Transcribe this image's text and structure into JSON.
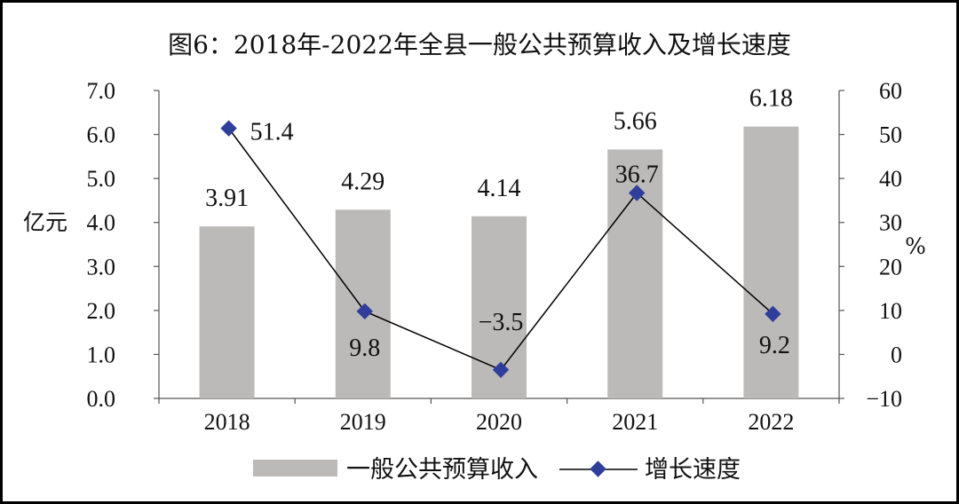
{
  "chart_data": {
    "type": "bar+line",
    "title": "图6：2018年-2022年全县一般公共预算收入及增长速度",
    "categories": [
      "2018",
      "2019",
      "2020",
      "2021",
      "2022"
    ],
    "series": [
      {
        "name": "一般公共预算收入",
        "type": "bar",
        "axis": "left",
        "values": [
          3.91,
          4.29,
          4.14,
          5.66,
          6.18
        ],
        "labels": [
          "3.91",
          "4.29",
          "4.14",
          "5.66",
          "6.18"
        ]
      },
      {
        "name": "增长速度",
        "type": "line",
        "axis": "right",
        "values": [
          51.4,
          9.8,
          -3.5,
          36.7,
          9.2
        ],
        "labels": [
          "51.4",
          "9.8",
          "−3.5",
          "36.7",
          "9.2"
        ]
      }
    ],
    "y_left": {
      "label": "亿元",
      "range": [
        0,
        7
      ],
      "ticks": [
        "0.0",
        "1.0",
        "2.0",
        "3.0",
        "4.0",
        "5.0",
        "6.0",
        "7.0"
      ]
    },
    "y_right": {
      "label": "%",
      "range": [
        -10,
        60
      ],
      "ticks": [
        "−10",
        "0",
        "10",
        "20",
        "30",
        "40",
        "50",
        "60"
      ]
    },
    "legend_position": "bottom",
    "grid": false
  },
  "colors": {
    "bar": "#bcb9b9",
    "line": "#000000",
    "marker": "#2e3e9a",
    "axis": "#555555"
  }
}
